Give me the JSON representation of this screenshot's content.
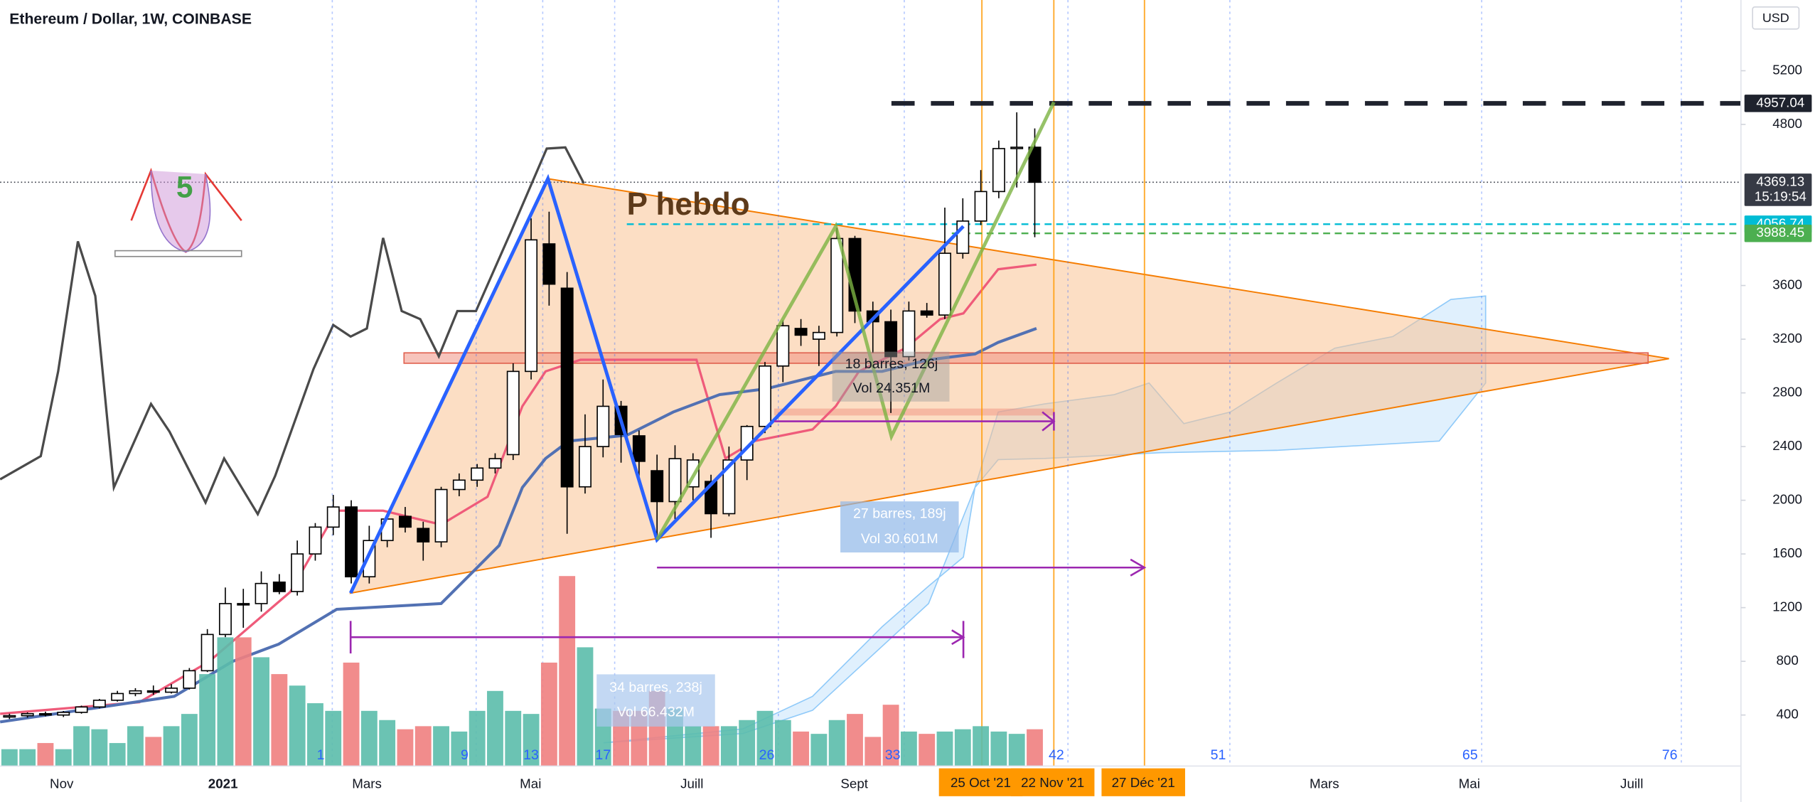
{
  "chart_data": {
    "type": "candlestick",
    "title": "Ethereum / Dollar, 1W, COINBASE",
    "currency": "USD",
    "ylim": [
      20,
      5727
    ],
    "yticks": [
      400,
      800,
      1200,
      1600,
      2000,
      2400,
      2800,
      3200,
      3600,
      4800,
      5200
    ],
    "xlim": [
      -0.52,
      96.26
    ],
    "xticks": [
      {
        "value": 2.9,
        "label": "Nov"
      },
      {
        "value": 11.87,
        "label": "2021"
      },
      {
        "value": 19.87,
        "label": "Mars"
      },
      {
        "value": 28.97,
        "label": "Mai"
      },
      {
        "value": 37.94,
        "label": "Juill"
      },
      {
        "value": 46.97,
        "label": "Sept"
      },
      {
        "value": 73.1,
        "label": "Mars"
      },
      {
        "value": 81.16,
        "label": "Mai"
      },
      {
        "value": 90.19,
        "label": "Juill"
      }
    ],
    "open": [
      385,
      395,
      410,
      400,
      420,
      460,
      510,
      560,
      580,
      570,
      600,
      730,
      1000,
      1230,
      1230,
      1390,
      1320,
      1600,
      1800,
      1950,
      1430,
      1700,
      1880,
      1790,
      1690,
      2080,
      2150,
      2240,
      2340,
      2960,
      3910,
      3580,
      2100,
      2400,
      2700,
      2480,
      2220,
      1990,
      2100,
      2140,
      1900,
      2300,
      2550,
      3000,
      3280,
      3200,
      3250,
      3950,
      3410,
      3330,
      3070,
      3410,
      3380,
      3840,
      4080,
      4300,
      4620,
      4630
    ],
    "high": [
      410,
      420,
      425,
      430,
      470,
      520,
      580,
      600,
      620,
      630,
      750,
      1040,
      1350,
      1340,
      1470,
      1450,
      1700,
      1830,
      2040,
      2000,
      1810,
      1880,
      1950,
      1840,
      2100,
      2200,
      2270,
      2350,
      3020,
      4100,
      4150,
      3700,
      2640,
      2900,
      2740,
      2520,
      2340,
      2410,
      2350,
      2190,
      2400,
      2560,
      3030,
      3340,
      3350,
      3300,
      4030,
      3970,
      3480,
      3420,
      3480,
      3470,
      4180,
      4250,
      4460,
      4680,
      4890,
      4770
    ],
    "low": [
      370,
      380,
      390,
      385,
      410,
      450,
      500,
      540,
      550,
      560,
      590,
      720,
      980,
      1050,
      1170,
      1300,
      1290,
      1550,
      1740,
      1380,
      1380,
      1650,
      1760,
      1550,
      1650,
      2030,
      2100,
      2200,
      2300,
      2900,
      3450,
      1750,
      2050,
      2320,
      2280,
      2170,
      1730,
      1860,
      2000,
      1720,
      1880,
      2150,
      2500,
      2880,
      3150,
      3000,
      3220,
      3320,
      3100,
      2650,
      3040,
      3360,
      3350,
      3800,
      4050,
      4250,
      4330,
      3960
    ],
    "close": [
      395,
      410,
      400,
      420,
      460,
      510,
      560,
      580,
      570,
      600,
      730,
      1000,
      1230,
      1220,
      1380,
      1320,
      1600,
      1800,
      1950,
      1430,
      1700,
      1860,
      1800,
      1690,
      2080,
      2150,
      2240,
      2310,
      2960,
      3940,
      3610,
      2100,
      2400,
      2700,
      2490,
      2290,
      1990,
      2310,
      2300,
      1900,
      2300,
      2550,
      3000,
      3300,
      3230,
      3250,
      3950,
      3410,
      3330,
      3070,
      3410,
      3380,
      3840,
      4080,
      4300,
      4620,
      4630,
      4369.13
    ],
    "volume": [
      22,
      22,
      30,
      22,
      52,
      48,
      30,
      52,
      38,
      52,
      68,
      120,
      168,
      168,
      142,
      120,
      105,
      82,
      72,
      135,
      72,
      60,
      48,
      52,
      52,
      45,
      72,
      98,
      72,
      68,
      135,
      248,
      155,
      75,
      72,
      72,
      98,
      75,
      52,
      52,
      52,
      60,
      72,
      60,
      45,
      42,
      60,
      68,
      38,
      80,
      45,
      42,
      45,
      48,
      52,
      45,
      42,
      48
    ],
    "volume_lim": [
      0,
      1000
    ],
    "up_color": "#ffffff",
    "down_color": "#000000",
    "volume_up_color": "#5bbcab",
    "volume_down_color": "#f07f7f",
    "levels": [
      {
        "value": 4957.04,
        "color": "#1e222d",
        "style": "dashed-thick"
      },
      {
        "value": 4369.13,
        "color": "#363a45",
        "style": "dotted",
        "countdown": "15:19:54"
      },
      {
        "value": 4056.74,
        "color": "#00bcd4",
        "style": "dashed"
      },
      {
        "value": 3988.45,
        "color": "#4caf50",
        "style": "dashed"
      }
    ],
    "date_markers": [
      {
        "value": 54.06,
        "label": "25 Oct '21"
      },
      {
        "value": 58.06,
        "label": "22 Nov '21"
      },
      {
        "value": 63.1,
        "label": "27 Déc '21"
      }
    ],
    "bar_counts": [
      {
        "value": 17.3,
        "label": "1"
      },
      {
        "value": 25.3,
        "label": "9"
      },
      {
        "value": 29.0,
        "label": "13"
      },
      {
        "value": 33.0,
        "label": "17"
      },
      {
        "value": 42.1,
        "label": "26"
      },
      {
        "value": 49.1,
        "label": "33"
      },
      {
        "value": 58.2,
        "label": "42"
      },
      {
        "value": 67.2,
        "label": "51"
      },
      {
        "value": 81.2,
        "label": "65"
      },
      {
        "value": 92.3,
        "label": "76"
      }
    ],
    "pattern_label": "5",
    "pattern_name": "P hebdo",
    "measures": [
      {
        "bars": "18 barres, 126j",
        "vol": "Vol 24.351M"
      },
      {
        "bars": "27 barres, 189j",
        "vol": "Vol 30.601M"
      },
      {
        "bars": "34 barres, 238j",
        "vol": "Vol 66.432M"
      }
    ]
  }
}
